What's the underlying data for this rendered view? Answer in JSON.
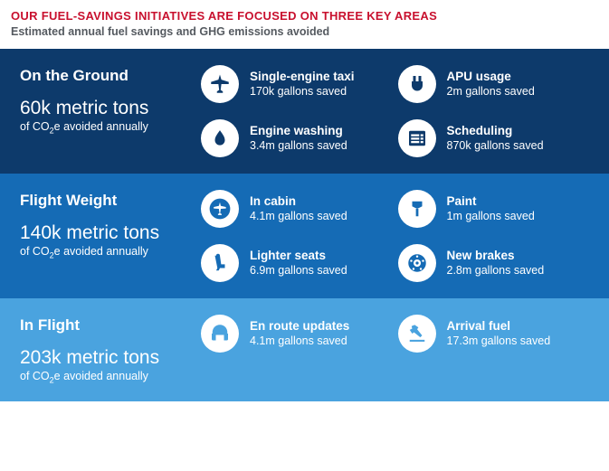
{
  "header": {
    "title": "OUR FUEL-SAVINGS INITIATIVES ARE FOCUSED ON THREE KEY AREAS",
    "title_color": "#c8102e",
    "subtitle": "Estimated annual fuel savings and GHG emissions avoided",
    "subtitle_color": "#555a60"
  },
  "sections": [
    {
      "name": "On the Ground",
      "metric": "60k metric tons",
      "caption_prefix": "of CO",
      "caption_sub": "2",
      "caption_suffix": "e avoided annually",
      "bg": "#0d3a6b",
      "icon_fill": "#0d3a6b",
      "items": [
        {
          "name": "Single-engine taxi",
          "value": "170k gallons saved"
        },
        {
          "name": "APU usage",
          "value": "2m gallons saved"
        },
        {
          "name": "Engine washing",
          "value": "3.4m gallons saved"
        },
        {
          "name": "Scheduling",
          "value": "870k gallons saved"
        }
      ]
    },
    {
      "name": "Flight Weight",
      "metric": "140k metric tons",
      "caption_prefix": "of CO",
      "caption_sub": "2",
      "caption_suffix": "e avoided annually",
      "bg": "#156bb5",
      "icon_fill": "#156bb5",
      "items": [
        {
          "name": "In cabin",
          "value": "4.1m gallons saved"
        },
        {
          "name": "Paint",
          "value": "1m gallons saved"
        },
        {
          "name": "Lighter seats",
          "value": "6.9m gallons saved"
        },
        {
          "name": "New brakes",
          "value": "2.8m gallons saved"
        }
      ]
    },
    {
      "name": "In Flight",
      "metric": "203k metric tons",
      "caption_prefix": "of CO",
      "caption_sub": "2",
      "caption_suffix": "e avoided annually",
      "bg": "#4aa3df",
      "icon_fill": "#4aa3df",
      "items": [
        {
          "name": "En route updates",
          "value": "4.1m gallons saved"
        },
        {
          "name": "Arrival fuel",
          "value": "17.3m gallons saved"
        }
      ]
    }
  ]
}
